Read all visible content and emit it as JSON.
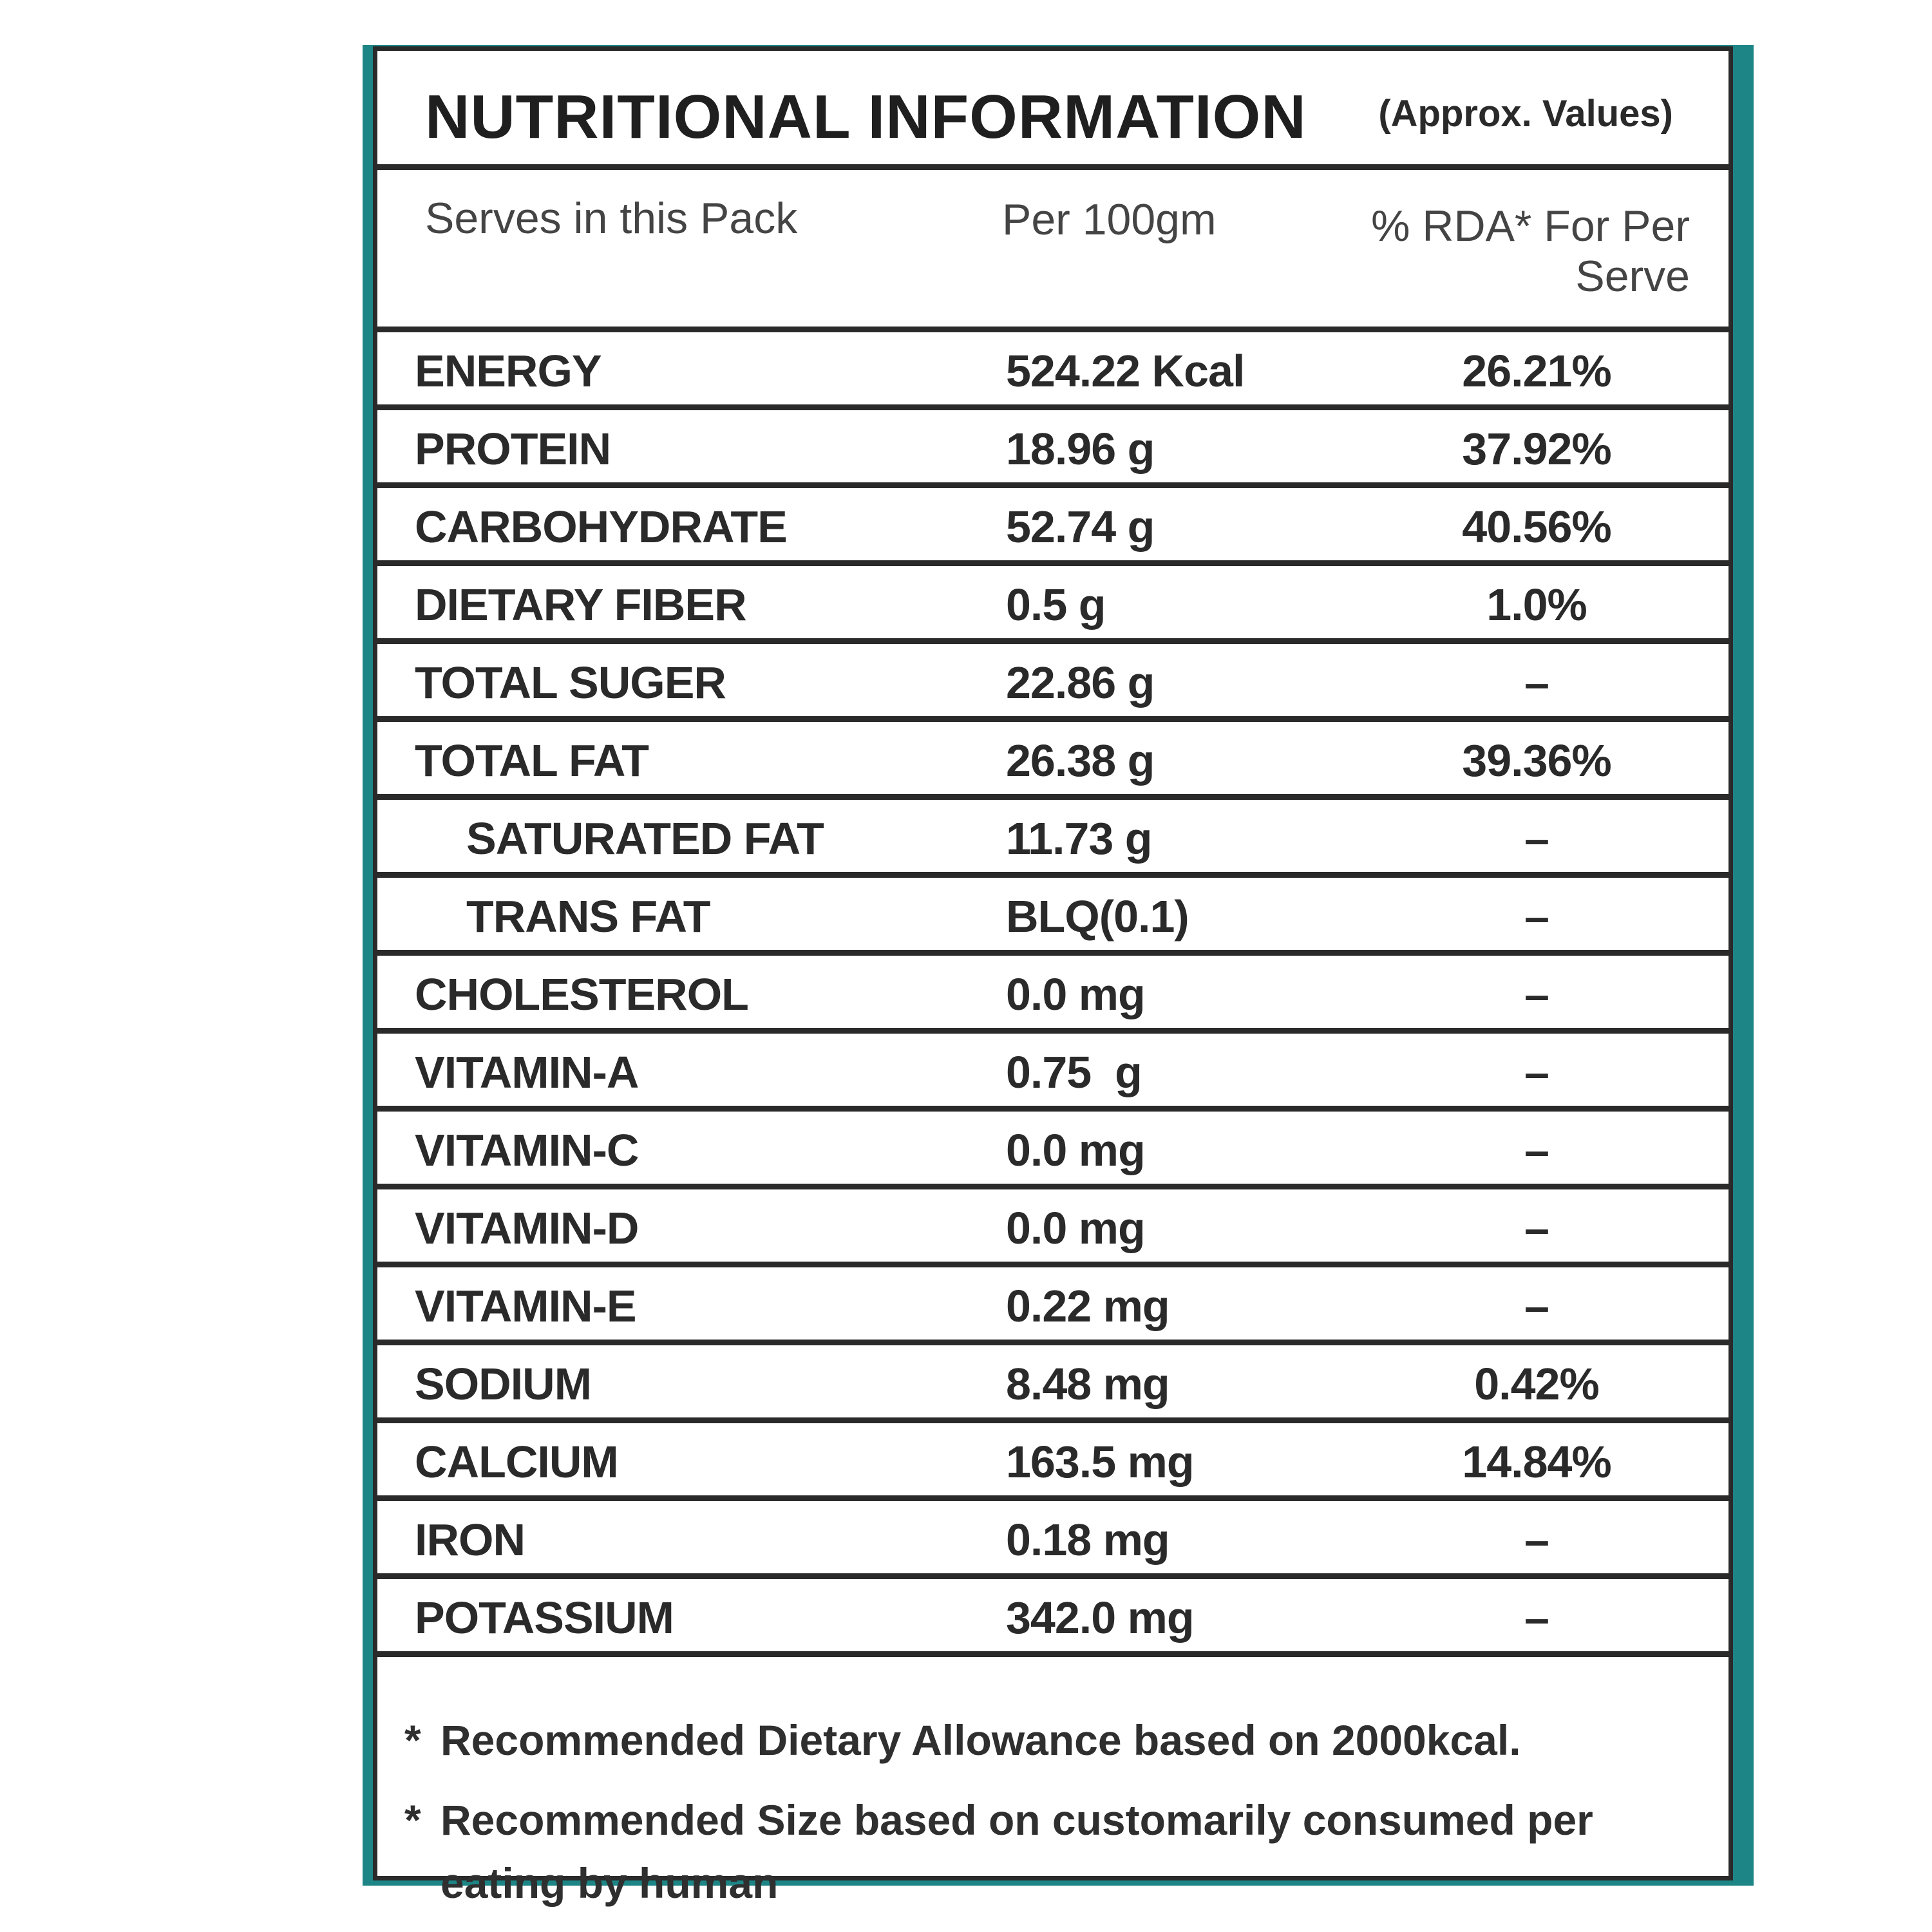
{
  "title": "NUTRITIONAL INFORMATION",
  "subtitle": "(Approx. Values)",
  "header": {
    "col1": "Serves in this Pack",
    "col2": "Per 100gm",
    "col3": "% RDA* For Per Serve"
  },
  "rows": [
    {
      "name": "ENERGY",
      "value": "524.22 Kcal",
      "rda": "26.21%"
    },
    {
      "name": "PROTEIN",
      "value": "18.96 g",
      "rda": "37.92%"
    },
    {
      "name": "CARBOHYDRATE",
      "value": "52.74 g",
      "rda": "40.56%"
    },
    {
      "name": "DIETARY FIBER",
      "value": "0.5 g",
      "rda": "1.0%"
    },
    {
      "name": "TOTAL SUGER",
      "value": "22.86 g",
      "rda": "–"
    },
    {
      "name": "TOTAL FAT",
      "value": "26.38 g",
      "rda": "39.36%"
    },
    {
      "name": "SATURATED FAT",
      "value": "11.73 g",
      "rda": "–"
    },
    {
      "name": "TRANS FAT",
      "value": "BLQ(0.1)",
      "rda": "–"
    },
    {
      "name": "CHOLESTEROL",
      "value": "0.0 mg",
      "rda": "–"
    },
    {
      "name": "VITAMIN-A",
      "value": "0.75  g",
      "rda": "–"
    },
    {
      "name": "VITAMIN-C",
      "value": "0.0 mg",
      "rda": "–"
    },
    {
      "name": "VITAMIN-D",
      "value": "0.0 mg",
      "rda": "–"
    },
    {
      "name": "VITAMIN-E",
      "value": "0.22 mg",
      "rda": "–"
    },
    {
      "name": "SODIUM",
      "value": "8.48 mg",
      "rda": "0.42%"
    },
    {
      "name": "CALCIUM",
      "value": "163.5 mg",
      "rda": "14.84%"
    },
    {
      "name": "IRON",
      "value": "0.18 mg",
      "rda": "–"
    },
    {
      "name": "POTASSIUM",
      "value": "342.0 mg",
      "rda": "–"
    }
  ],
  "notes": [
    {
      "marker": "*",
      "text": "Recommended Dietary Allowance based on 2000kcal."
    },
    {
      "marker": "*",
      "text": "Recommended Size based on customarily consumed per eating by human"
    }
  ],
  "colors": {
    "frame_teal": "#1d8585",
    "rule": "#2a2a2a"
  }
}
